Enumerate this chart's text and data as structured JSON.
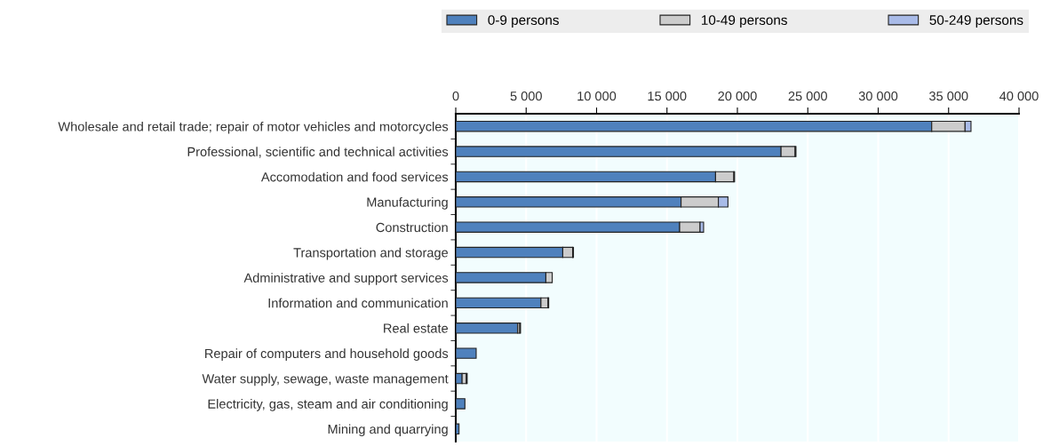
{
  "chart_data": {
    "type": "bar",
    "orientation": "horizontal",
    "stacked": true,
    "categories": [
      "Wholesale and retail trade; repair of motor vehicles and motorcycles",
      "Professional, scientific and technical activities",
      "Accomodation and food services",
      "Manufacturing",
      "Construction",
      "Transportation and storage",
      "Administrative and support services",
      "Information and communication",
      "Real estate",
      "Repair of computers and household goods",
      "Water supply, sewage, waste management",
      "Electricity, gas, steam and air conditioning",
      "Mining and quarrying"
    ],
    "series": [
      {
        "name": "0-9 persons",
        "color": "#4f81bd",
        "values": [
          33800,
          23100,
          18450,
          16000,
          15900,
          7600,
          6400,
          6050,
          4400,
          1450,
          450,
          650,
          230
        ]
      },
      {
        "name": "10-49 persons",
        "color": "#cccccc",
        "values": [
          2370,
          1000,
          1300,
          2650,
          1450,
          700,
          450,
          500,
          150,
          null,
          300,
          null,
          null
        ]
      },
      {
        "name": "50-249 persons",
        "color": "#a9bbe8",
        "values": [
          420,
          60,
          50,
          680,
          250,
          60,
          null,
          50,
          50,
          null,
          60,
          null,
          null
        ]
      }
    ],
    "xlim": [
      0,
      40000
    ],
    "xticks": [
      0,
      {
        "value": 5000,
        "label": "5 000"
      },
      {
        "value": 10000,
        "label": "10 000"
      },
      {
        "value": 15000,
        "label": "15 000"
      },
      {
        "value": 20000,
        "label": "20 000"
      },
      {
        "value": 25000,
        "label": "25 000"
      },
      {
        "value": 30000,
        "label": "30 000"
      },
      {
        "value": 35000,
        "label": "35 000"
      },
      {
        "value": 40000,
        "label": "40 000"
      }
    ],
    "grid": "x",
    "legend": "top"
  }
}
